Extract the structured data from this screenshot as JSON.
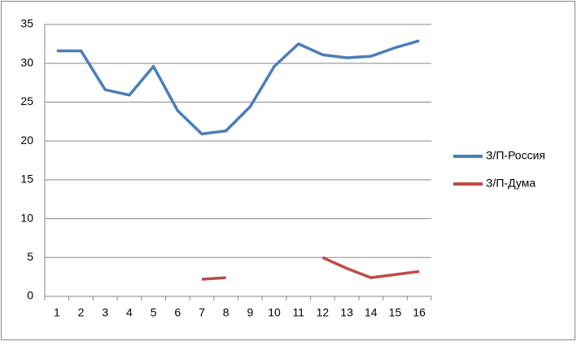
{
  "chart_data": {
    "type": "line",
    "categories": [
      "1",
      "2",
      "3",
      "4",
      "5",
      "6",
      "7",
      "8",
      "9",
      "10",
      "11",
      "12",
      "13",
      "14",
      "15",
      "16"
    ],
    "series": [
      {
        "name": "З/П-Россия",
        "color": "#4a7ebb",
        "values": [
          31.6,
          31.6,
          26.6,
          25.9,
          29.6,
          23.9,
          20.9,
          21.3,
          24.4,
          29.6,
          32.5,
          31.1,
          30.7,
          30.9,
          32.0,
          32.9
        ]
      },
      {
        "name": "З/П-Дума",
        "color": "#be4b48",
        "values": [
          null,
          null,
          null,
          null,
          null,
          null,
          2.2,
          2.4,
          null,
          null,
          null,
          5.0,
          3.6,
          2.4,
          2.8,
          3.2
        ]
      }
    ],
    "ylim": [
      0,
      35
    ],
    "yticks": [
      0,
      5,
      10,
      15,
      20,
      25,
      30,
      35
    ],
    "grid": true,
    "legend": "right"
  }
}
